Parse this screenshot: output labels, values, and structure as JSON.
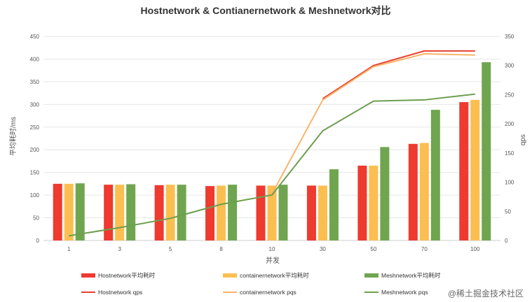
{
  "chart_data": {
    "type": "bar+line",
    "title": "Hostnetwork & Contianernetwork & Meshnetwork对比",
    "xlabel": "并发",
    "ylabel_left": "平均耗时/ms",
    "ylabel_right": "qps",
    "categories": [
      "1",
      "3",
      "5",
      "8",
      "10",
      "30",
      "50",
      "70",
      "100"
    ],
    "y_left": {
      "min": 0,
      "max": 450,
      "step": 50
    },
    "y_right": {
      "min": 0,
      "max": 350,
      "step": 50
    },
    "bar_series": [
      {
        "name": "Hostnetwork平均耗时",
        "color": "#ee3a2f",
        "values": [
          125,
          123,
          122,
          120,
          121,
          121,
          165,
          213,
          305
        ]
      },
      {
        "name": "containernetwork平均耗时",
        "color": "#fbbf51",
        "values": [
          125,
          123,
          123,
          121,
          121,
          121,
          165,
          215,
          310
        ]
      },
      {
        "name": "Meshnetwork平均耗时",
        "color": "#70a550",
        "values": [
          126,
          124,
          123,
          123,
          123,
          157,
          206,
          288,
          393
        ]
      }
    ],
    "line_series": [
      {
        "name": "Hostnetwork qps",
        "color": "#e84030",
        "values": [
          null,
          null,
          null,
          null,
          null,
          243,
          300,
          325,
          325
        ]
      },
      {
        "name": "containernetwork pqs",
        "color": "#f9b469",
        "values": [
          null,
          null,
          null,
          null,
          80,
          241,
          298,
          320,
          318
        ]
      },
      {
        "name": "Meshnetwork pqs",
        "color": "#6d9e4f",
        "values": [
          8,
          22,
          38,
          62,
          78,
          188,
          239,
          241,
          251
        ]
      }
    ],
    "legend_position": "bottom"
  },
  "watermark": "@稀土掘金技术社区"
}
